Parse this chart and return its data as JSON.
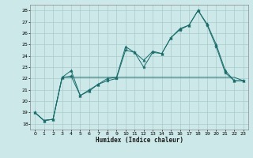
{
  "xlabel": "Humidex (Indice chaleur)",
  "background_color": "#cce8e8",
  "grid_color": "#aacccc",
  "line_color": "#1a6b6b",
  "xlim": [
    -0.5,
    23.5
  ],
  "ylim": [
    17.5,
    28.5
  ],
  "xticks": [
    0,
    1,
    2,
    3,
    4,
    5,
    6,
    7,
    8,
    9,
    10,
    11,
    12,
    13,
    14,
    15,
    16,
    17,
    18,
    19,
    20,
    21,
    22,
    23
  ],
  "yticks": [
    18,
    19,
    20,
    21,
    22,
    23,
    24,
    25,
    26,
    27,
    28
  ],
  "line1_x": [
    0,
    1,
    2,
    3,
    4,
    5,
    6,
    7,
    8,
    9,
    10,
    11,
    12,
    13,
    14,
    15,
    16,
    17,
    18,
    19,
    20,
    21,
    22,
    23
  ],
  "line1_y": [
    19.0,
    18.3,
    18.4,
    22.1,
    22.7,
    20.5,
    20.9,
    21.5,
    22.0,
    22.1,
    24.8,
    24.3,
    23.6,
    24.4,
    24.2,
    25.6,
    26.4,
    26.7,
    28.0,
    26.8,
    25.0,
    22.7,
    21.8,
    21.8
  ],
  "line2_x": [
    0,
    1,
    2,
    3,
    4,
    5,
    6,
    7,
    8,
    9,
    10,
    11,
    12,
    13,
    14,
    15,
    16,
    17,
    18,
    19,
    20,
    21,
    22,
    23
  ],
  "line2_y": [
    19.0,
    18.3,
    18.4,
    22.1,
    22.2,
    20.5,
    21.0,
    21.5,
    21.8,
    22.0,
    24.5,
    24.3,
    23.0,
    24.3,
    24.2,
    25.6,
    26.3,
    26.7,
    28.0,
    26.7,
    24.8,
    22.5,
    21.8,
    21.8
  ],
  "line3_x": [
    0,
    1,
    2,
    3,
    4,
    5,
    6,
    7,
    8,
    9,
    10,
    11,
    12,
    13,
    14,
    15,
    16,
    17,
    18,
    19,
    20,
    21,
    22,
    23
  ],
  "line3_y": [
    19.0,
    18.3,
    18.4,
    22.1,
    22.1,
    22.1,
    22.1,
    22.1,
    22.1,
    22.1,
    22.1,
    22.1,
    22.1,
    22.1,
    22.1,
    22.1,
    22.1,
    22.1,
    22.1,
    22.1,
    22.1,
    22.1,
    22.1,
    21.8
  ]
}
